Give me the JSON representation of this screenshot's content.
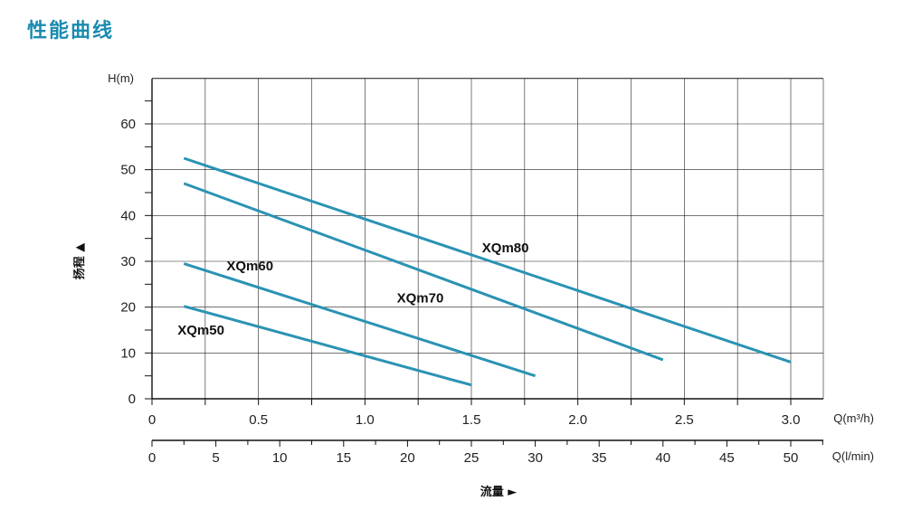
{
  "page": {
    "title": "性能曲线"
  },
  "colors": {
    "curve": "#2a93b3",
    "grid": "#222222",
    "axis": "#111111"
  },
  "chart_data": {
    "type": "line",
    "ylabel_unit": "H(m)",
    "ylabel": "扬程 ▲",
    "xlabel": "流量 ►",
    "x1_unit": "Q(m³/h)",
    "x2_unit": "Q(l/min)",
    "ylim": [
      0,
      70
    ],
    "xlim": [
      0,
      3.0
    ],
    "x2lim": [
      0,
      50
    ],
    "yticks": [
      "0",
      "10",
      "20",
      "30",
      "40",
      "50",
      "60"
    ],
    "xticks": [
      "0",
      "0.5",
      "1.0",
      "1.5",
      "2.0",
      "2.5",
      "3.0"
    ],
    "x2ticks": [
      "0",
      "5",
      "10",
      "15",
      "20",
      "25",
      "30",
      "35",
      "40",
      "45",
      "50"
    ],
    "grid": true,
    "series": [
      {
        "name": "XQm80",
        "x": [
          0.15,
          3.0
        ],
        "y": [
          52.5,
          8
        ],
        "label_at": [
          1.55,
          32
        ]
      },
      {
        "name": "XQm70",
        "x": [
          0.15,
          2.4
        ],
        "y": [
          47,
          8.5
        ],
        "label_at": [
          1.15,
          21
        ]
      },
      {
        "name": "XQm60",
        "x": [
          0.15,
          1.8
        ],
        "y": [
          29.5,
          5
        ],
        "label_at": [
          0.35,
          28
        ]
      },
      {
        "name": "XQm50",
        "x": [
          0.15,
          1.5
        ],
        "y": [
          20.2,
          3
        ],
        "label_at": [
          0.12,
          14
        ]
      }
    ]
  }
}
